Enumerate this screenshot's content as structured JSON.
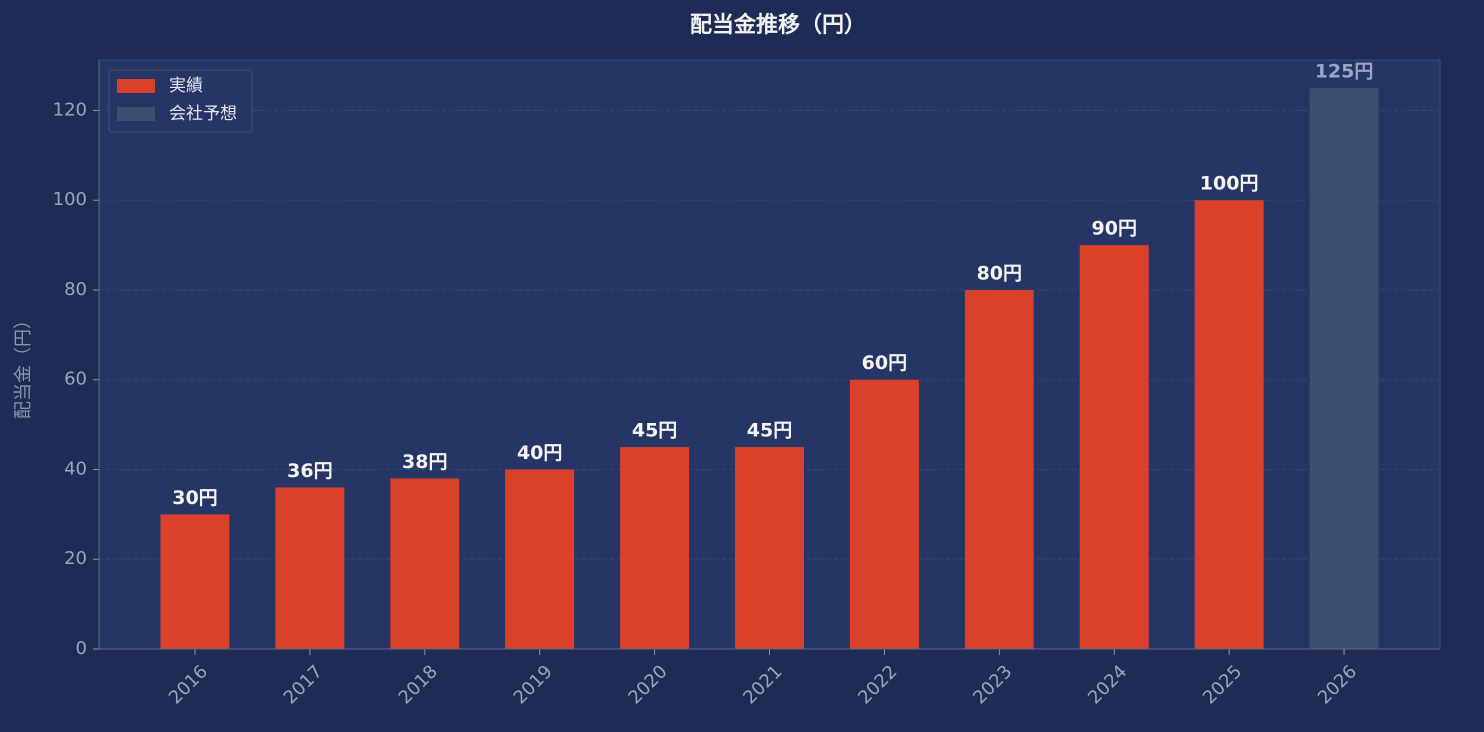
{
  "chart_data": {
    "type": "bar",
    "title": "配当金推移（円）",
    "y_label": "配当金（円）",
    "categories": [
      "2016",
      "2017",
      "2018",
      "2019",
      "2020",
      "2021",
      "2022",
      "2023",
      "2024",
      "2025",
      "2026"
    ],
    "series": [
      {
        "name": "実績",
        "color": "#d9412b",
        "values": [
          30,
          36,
          38,
          40,
          45,
          45,
          60,
          80,
          90,
          100,
          null
        ],
        "value_labels": [
          "30円",
          "36円",
          "38円",
          "40円",
          "45円",
          "45円",
          "60円",
          "80円",
          "90円",
          "100円",
          null
        ]
      },
      {
        "name": "会社予想",
        "color": "#3d4f6e",
        "values": [
          null,
          null,
          null,
          null,
          null,
          null,
          null,
          null,
          null,
          null,
          125
        ],
        "value_labels": [
          null,
          null,
          null,
          null,
          null,
          null,
          null,
          null,
          null,
          null,
          "125円"
        ]
      }
    ],
    "ylim": [
      0,
      131.25
    ],
    "yticks": [
      0,
      20,
      40,
      60,
      80,
      100,
      120
    ],
    "grid": true,
    "legend": "upper left"
  }
}
